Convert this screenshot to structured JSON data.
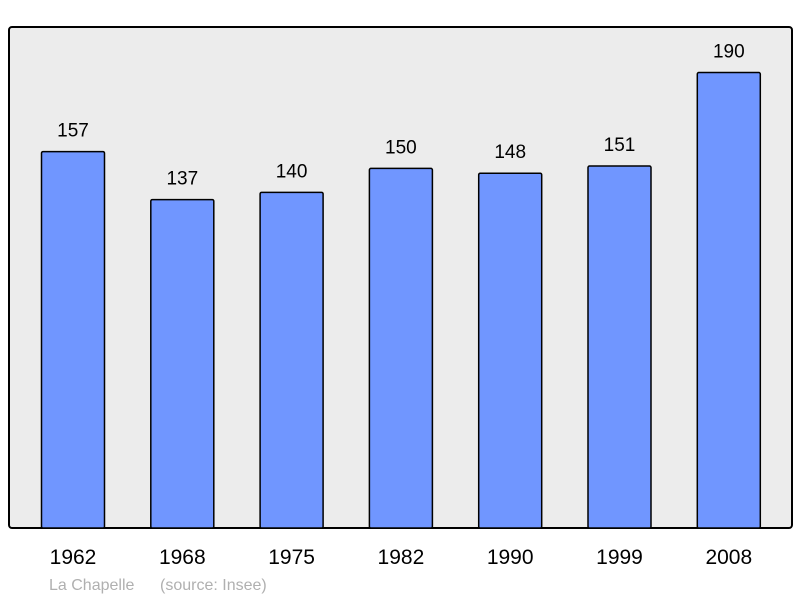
{
  "chart_data": {
    "type": "bar",
    "title": "",
    "xlabel": "",
    "ylabel": "",
    "categories": [
      "1962",
      "1968",
      "1975",
      "1982",
      "1990",
      "1999",
      "2008"
    ],
    "values": [
      157,
      137,
      140,
      150,
      148,
      151,
      190
    ],
    "ylim": [
      0,
      209
    ],
    "grid": false,
    "data_labels": true,
    "colors": {
      "bar": "#7096ff",
      "plot_background": "#ececec",
      "border": "#000000",
      "footer_text": "#b0b0b0"
    }
  },
  "footer": {
    "place": "La Chapelle",
    "source": "(source: Insee)"
  }
}
